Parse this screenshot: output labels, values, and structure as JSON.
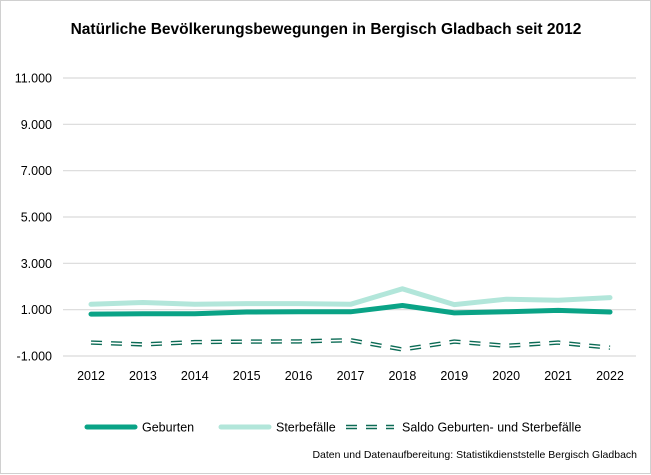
{
  "chart_data": {
    "type": "line",
    "title": "Natürliche Bevölkerungsbewegungen in Bergisch Gladbach seit 2012",
    "xlabel": "",
    "ylabel": "",
    "x": [
      "2012",
      "2013",
      "2014",
      "2015",
      "2016",
      "2017",
      "2018",
      "2019",
      "2020",
      "2021",
      "2022"
    ],
    "ylim": [
      -1000,
      11000
    ],
    "yticks": [
      -1000,
      1000,
      3000,
      5000,
      7000,
      9000,
      11000
    ],
    "ytick_labels": [
      "-1.000",
      "1.000",
      "3.000",
      "5.000",
      "7.000",
      "9.000",
      "11.000"
    ],
    "grid": true,
    "legend_position": "bottom",
    "series": [
      {
        "name": "Geburten",
        "color": "#0aa386",
        "style": "solid-thick",
        "values": [
          810,
          820,
          820,
          900,
          910,
          910,
          1180,
          860,
          910,
          970,
          900
        ]
      },
      {
        "name": "Sterbefälle",
        "color": "#b2e6da",
        "style": "solid",
        "values": [
          1230,
          1310,
          1230,
          1260,
          1260,
          1230,
          1900,
          1220,
          1450,
          1410,
          1520
        ]
      },
      {
        "name": "Saldo Geburten- und Sterbefälle",
        "color": "#0c6b55",
        "style": "dashed",
        "values": [
          -420,
          -500,
          -400,
          -380,
          -370,
          -320,
          -720,
          -380,
          -560,
          -420,
          -640
        ]
      }
    ],
    "source_note": "Daten und Datenaufbereitung: Statistikdienststelle Bergisch Gladbach"
  }
}
